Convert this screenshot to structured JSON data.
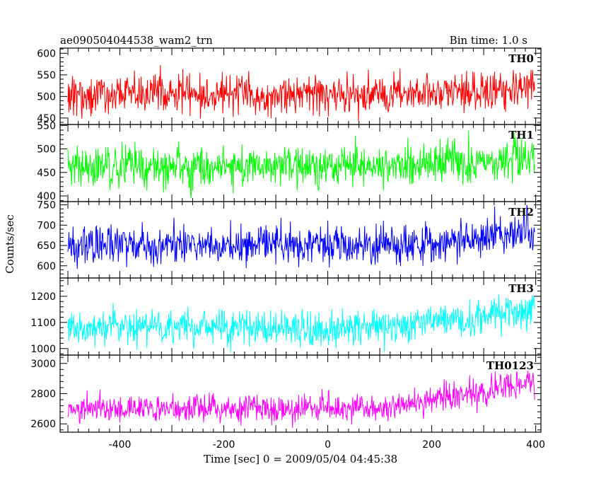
{
  "header": {
    "title": "ae090504044538_wam2_trn",
    "bin_time": "Bin time: 1.0 s"
  },
  "axes": {
    "ylabel": "Counts/sec",
    "xlabel": "Time [sec] 0 = 2009/05/04 04:45:38"
  },
  "chart_data": {
    "type": "line",
    "xlim": [
      -515,
      410
    ],
    "x_ticks": [
      -400,
      -200,
      0,
      200,
      400
    ],
    "x_step": 1.0,
    "x_range": [
      -500,
      398
    ],
    "series": [
      {
        "name": "TH0",
        "color": "#ff0000",
        "ylim": [
          435,
          612
        ],
        "y_ticks": [
          450,
          500,
          550,
          600
        ],
        "baseline": [
          [
            -500,
            505
          ],
          [
            100,
            505
          ],
          [
            250,
            512
          ],
          [
            398,
            522
          ]
        ],
        "noise_sd": 22
      },
      {
        "name": "TH1",
        "color": "#00ff00",
        "ylim": [
          388,
          552
        ],
        "y_ticks": [
          400,
          450,
          500,
          550
        ],
        "baseline": [
          [
            -500,
            462
          ],
          [
            100,
            462
          ],
          [
            250,
            470
          ],
          [
            398,
            482
          ]
        ],
        "noise_sd": 21
      },
      {
        "name": "TH2",
        "color": "#0000ff",
        "ylim": [
          570,
          758
        ],
        "y_ticks": [
          600,
          650,
          700,
          750
        ],
        "baseline": [
          [
            -500,
            650
          ],
          [
            100,
            650
          ],
          [
            250,
            662
          ],
          [
            398,
            690
          ]
        ],
        "noise_sd": 24
      },
      {
        "name": "TH3",
        "color": "#00ffff",
        "ylim": [
          975,
          1270
        ],
        "y_ticks": [
          1000,
          1100,
          1200
        ],
        "baseline": [
          [
            -500,
            1080
          ],
          [
            100,
            1082
          ],
          [
            250,
            1110
          ],
          [
            398,
            1150
          ]
        ],
        "noise_sd": 34
      },
      {
        "name": "TH0123",
        "color": "#ff00ff",
        "ylim": [
          2545,
          3055
        ],
        "y_ticks": [
          2600,
          2800,
          3000
        ],
        "baseline": [
          [
            -500,
            2700
          ],
          [
            100,
            2705
          ],
          [
            250,
            2790
          ],
          [
            398,
            2880
          ]
        ],
        "noise_sd": 45
      }
    ]
  }
}
